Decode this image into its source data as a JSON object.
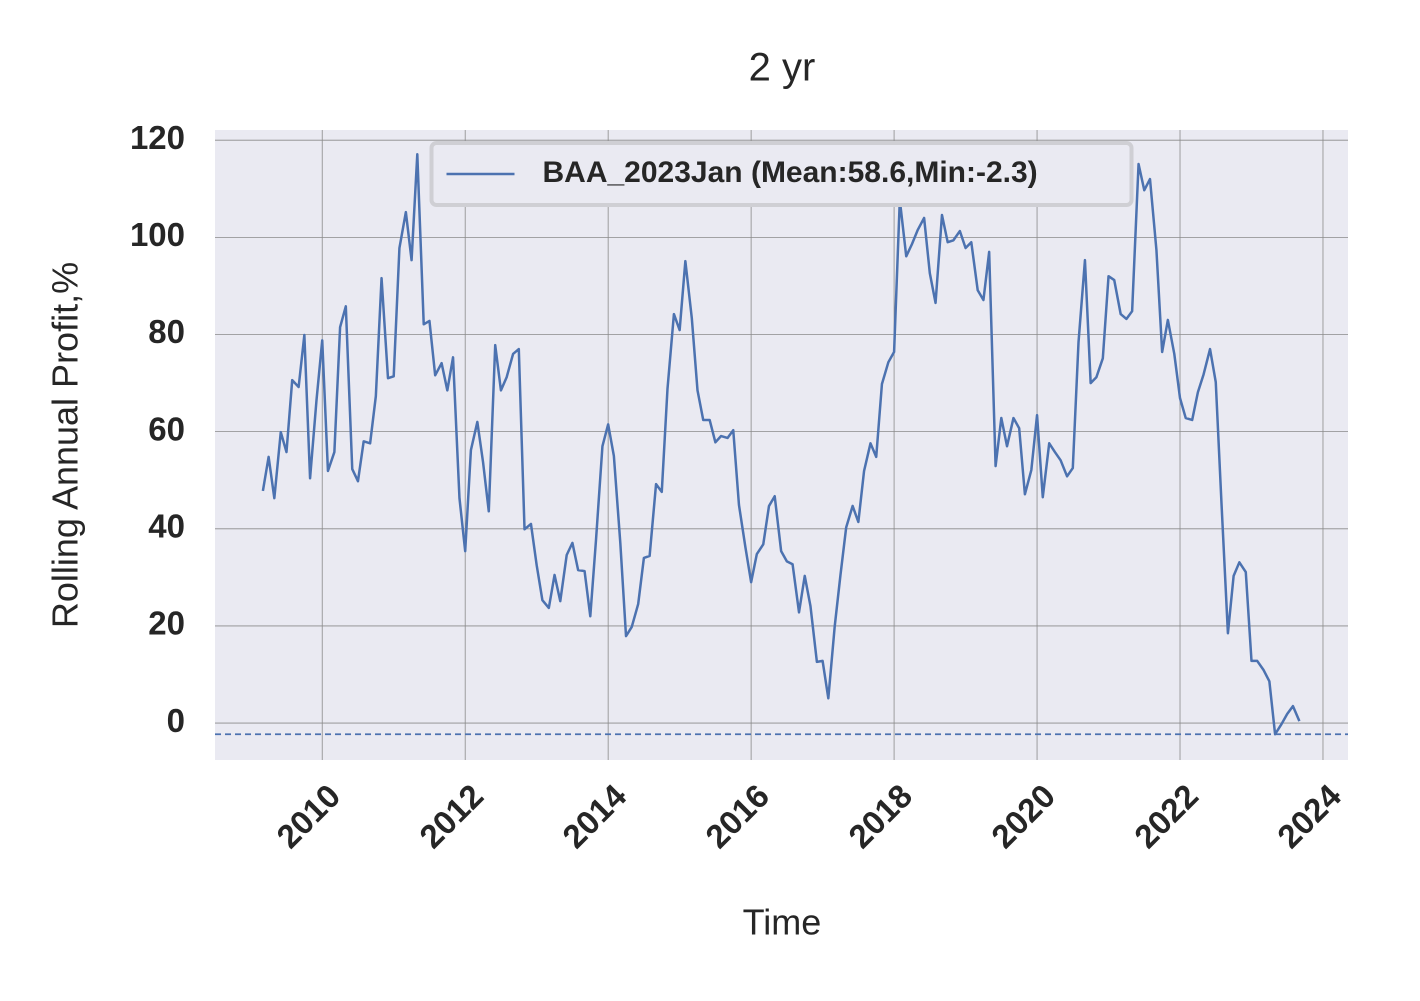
{
  "chart_data": {
    "type": "line",
    "title": "2 yr",
    "xlabel": "Time",
    "ylabel": "Rolling Annual Profit,%",
    "x": [
      2009.17,
      2009.25,
      2009.33,
      2009.42,
      2009.5,
      2009.58,
      2009.67,
      2009.75,
      2009.83,
      2009.92,
      2010.0,
      2010.08,
      2010.17,
      2010.25,
      2010.33,
      2010.42,
      2010.5,
      2010.58,
      2010.67,
      2010.75,
      2010.83,
      2010.92,
      2011.0,
      2011.08,
      2011.17,
      2011.25,
      2011.33,
      2011.42,
      2011.5,
      2011.58,
      2011.67,
      2011.75,
      2011.83,
      2011.92,
      2012.0,
      2012.08,
      2012.17,
      2012.25,
      2012.33,
      2012.42,
      2012.5,
      2012.58,
      2012.67,
      2012.75,
      2012.83,
      2012.92,
      2013.0,
      2013.08,
      2013.17,
      2013.25,
      2013.33,
      2013.42,
      2013.5,
      2013.58,
      2013.67,
      2013.75,
      2013.83,
      2013.92,
      2014.0,
      2014.08,
      2014.17,
      2014.25,
      2014.33,
      2014.42,
      2014.5,
      2014.58,
      2014.67,
      2014.75,
      2014.83,
      2014.92,
      2015.0,
      2015.08,
      2015.17,
      2015.25,
      2015.33,
      2015.42,
      2015.5,
      2015.58,
      2015.67,
      2015.75,
      2015.83,
      2015.92,
      2016.0,
      2016.08,
      2016.17,
      2016.25,
      2016.33,
      2016.42,
      2016.5,
      2016.58,
      2016.67,
      2016.75,
      2016.83,
      2016.92,
      2017.0,
      2017.08,
      2017.17,
      2017.25,
      2017.33,
      2017.42,
      2017.5,
      2017.58,
      2017.67,
      2017.75,
      2017.83,
      2017.92,
      2018.0,
      2018.08,
      2018.17,
      2018.25,
      2018.33,
      2018.42,
      2018.5,
      2018.58,
      2018.67,
      2018.75,
      2018.83,
      2018.92,
      2019.0,
      2019.08,
      2019.17,
      2019.25,
      2019.33,
      2019.42,
      2019.5,
      2019.58,
      2019.67,
      2019.75,
      2019.83,
      2019.92,
      2020.0,
      2020.08,
      2020.17,
      2020.25,
      2020.33,
      2020.42,
      2020.5,
      2020.58,
      2020.67,
      2020.75,
      2020.83,
      2020.92,
      2021.0,
      2021.08,
      2021.17,
      2021.25,
      2021.33,
      2021.42,
      2021.5,
      2021.58,
      2021.67,
      2021.75,
      2021.83,
      2021.92,
      2022.0,
      2022.08,
      2022.17,
      2022.25,
      2022.33,
      2022.42,
      2022.5,
      2022.58,
      2022.67,
      2022.75,
      2022.83,
      2022.92,
      2023.0,
      2023.08,
      2023.17,
      2023.25,
      2023.33,
      2023.42,
      2023.5,
      2023.58,
      2023.67
    ],
    "series": [
      {
        "name": "BAA_2023Jan (Mean:58.6,Min:-2.3)",
        "color": "#4c72b0",
        "values": [
          47.8,
          54.8,
          46.3,
          59.9,
          55.8,
          70.6,
          69.2,
          79.9,
          50.4,
          66.5,
          78.8,
          51.9,
          55.8,
          81.5,
          85.8,
          52.3,
          49.8,
          58.0,
          57.6,
          67.3,
          91.6,
          71.0,
          71.4,
          97.8,
          105.2,
          95.3,
          117.1,
          82.1,
          82.8,
          71.6,
          74.1,
          68.5,
          75.3,
          46.3,
          35.4,
          56.2,
          62.0,
          53.7,
          43.6,
          77.8,
          68.5,
          71.2,
          76.0,
          77.0,
          39.9,
          41.0,
          32.5,
          25.3,
          23.7,
          30.5,
          25.1,
          34.6,
          37.1,
          31.5,
          31.3,
          22.0,
          37.7,
          57.0,
          61.5,
          55.0,
          37.1,
          17.9,
          19.8,
          24.5,
          34.0,
          34.4,
          49.2,
          47.6,
          68.8,
          84.2,
          80.9,
          95.1,
          83.4,
          68.5,
          62.4,
          62.4,
          57.8,
          59.1,
          58.7,
          60.3,
          44.9,
          36.2,
          29.0,
          34.8,
          36.8,
          44.7,
          46.7,
          35.4,
          33.3,
          32.7,
          22.8,
          30.3,
          24.1,
          12.6,
          12.8,
          5.1,
          20.0,
          30.5,
          40.3,
          44.7,
          41.4,
          51.9,
          57.6,
          54.8,
          69.8,
          74.3,
          76.4,
          107.7,
          96.1,
          98.6,
          101.5,
          104.0,
          92.6,
          86.5,
          104.6,
          99.0,
          99.4,
          101.3,
          97.8,
          99.0,
          89.1,
          87.1,
          97.0,
          52.9,
          62.8,
          57.0,
          62.8,
          60.7,
          47.1,
          52.1,
          63.4,
          46.5,
          57.6,
          55.8,
          54.1,
          50.8,
          52.5,
          78.4,
          95.3,
          70.0,
          71.2,
          75.1,
          92.0,
          91.2,
          84.2,
          83.2,
          84.8,
          115.1,
          109.7,
          112.0,
          97.4,
          76.4,
          83.0,
          76.0,
          66.9,
          62.8,
          62.4,
          68.1,
          71.8,
          77.0,
          70.2,
          45.3,
          18.5,
          30.3,
          33.1,
          31.1,
          12.8,
          12.8,
          10.9,
          8.6,
          -2.3,
          -0.2,
          1.9,
          3.5,
          0.4
        ]
      }
    ],
    "hline": -2.3,
    "xlim": [
      2008.5,
      2024.35
    ],
    "xticks": [
      2010,
      2012,
      2014,
      2016,
      2018,
      2020,
      2022,
      2024
    ],
    "ylim": [
      -7.6,
      122.1
    ],
    "yticks": [
      0,
      20,
      40,
      60,
      80,
      100,
      120
    ],
    "grid": true,
    "legend": "upper center"
  }
}
